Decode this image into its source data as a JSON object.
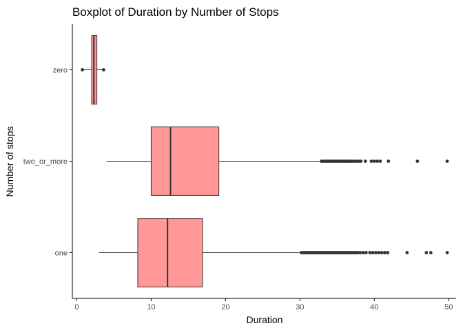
{
  "chart_data": {
    "type": "boxplot",
    "orientation": "horizontal",
    "title": "Boxplot of Duration by Number of Stops",
    "xlabel": "Duration",
    "ylabel": "Number of stops",
    "xlim": [
      -0.6,
      51.0
    ],
    "xticks": [
      0,
      10,
      20,
      30,
      40,
      50
    ],
    "xtick_labels": [
      "0",
      "10",
      "20",
      "30",
      "40",
      "50"
    ],
    "categories": [
      "zero",
      "two_or_more",
      "one"
    ],
    "boxes": [
      {
        "category": "zero",
        "whisker_low": 0.8,
        "q1": 2.0,
        "median": 2.3,
        "q3": 2.7,
        "whisker_high": 3.6,
        "outliers": [
          0.75,
          3.6
        ]
      },
      {
        "category": "two_or_more",
        "whisker_low": 4.0,
        "q1": 10.0,
        "median": 12.6,
        "q3": 19.1,
        "whisker_high": 32.8,
        "outliers": [
          32.9,
          33.1,
          33.3,
          33.5,
          33.7,
          33.9,
          34.1,
          34.3,
          34.5,
          34.7,
          34.9,
          35.1,
          35.3,
          35.5,
          35.7,
          35.9,
          36.1,
          36.3,
          36.5,
          36.7,
          36.9,
          37.1,
          37.3,
          37.6,
          37.9,
          38.2,
          38.8,
          39.6,
          40.0,
          40.4,
          40.8,
          41.9,
          45.8,
          49.8
        ]
      },
      {
        "category": "one",
        "whisker_low": 3.0,
        "q1": 8.2,
        "median": 12.2,
        "q3": 16.9,
        "whisker_high": 30.1,
        "outliers": [
          30.2,
          30.4,
          30.6,
          30.8,
          31.0,
          31.2,
          31.4,
          31.6,
          31.8,
          32.0,
          32.2,
          32.4,
          32.6,
          32.8,
          33.0,
          33.2,
          33.4,
          33.6,
          33.8,
          34.0,
          34.2,
          34.4,
          34.6,
          34.8,
          35.0,
          35.2,
          35.4,
          35.6,
          35.8,
          36.0,
          36.2,
          36.4,
          36.6,
          36.8,
          37.0,
          37.2,
          37.4,
          37.6,
          37.8,
          38.1,
          38.5,
          38.9,
          39.4,
          39.8,
          40.2,
          40.6,
          41.0,
          41.4,
          41.8,
          44.4,
          47.0,
          47.6,
          49.8
        ]
      }
    ],
    "colors": {
      "box_fill": "#ff9896",
      "box_stroke": "#333333",
      "whisker": "#333333",
      "outlier": "#333333",
      "axis": "#000000",
      "tick_label": "#4d4d4d"
    },
    "grid": false,
    "legend": "none"
  }
}
